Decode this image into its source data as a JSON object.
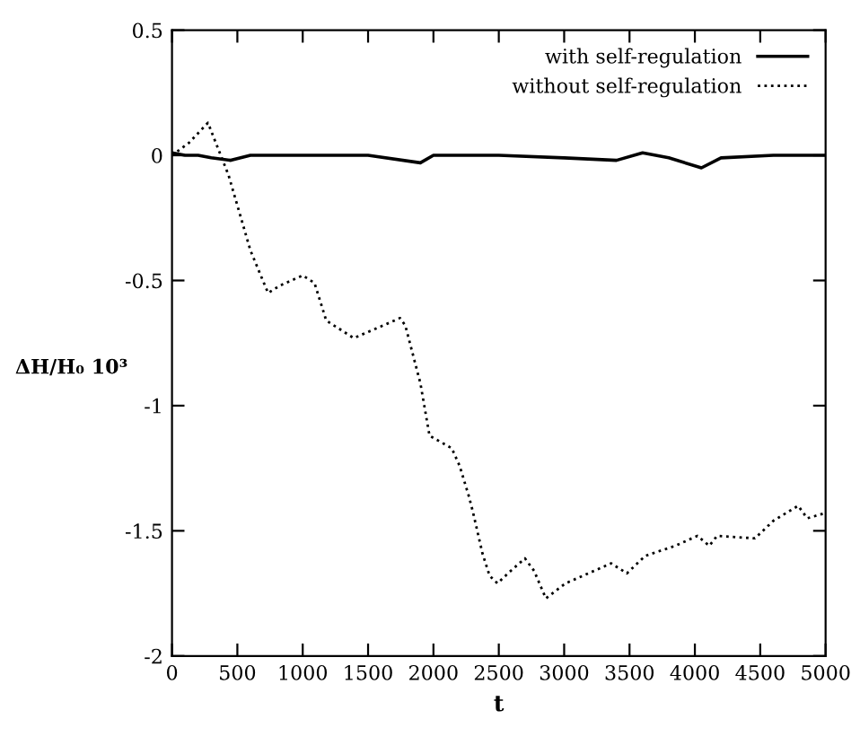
{
  "chart_data": {
    "type": "line",
    "xlabel": "t",
    "ylabel": "ΔH/H₀ 10³",
    "xlim": [
      0,
      5000
    ],
    "ylim": [
      -2,
      0.5
    ],
    "xticks": [
      0,
      500,
      1000,
      1500,
      2000,
      2500,
      3000,
      3500,
      4000,
      4500,
      5000
    ],
    "yticks": [
      -2,
      -1.5,
      -1,
      -0.5,
      0,
      0.5
    ],
    "grid": false,
    "legend": "top right",
    "marker": "none",
    "series": [
      {
        "name": "with self-regulation",
        "color": "#000000",
        "line_style": "solid",
        "x": [
          0,
          100,
          200,
          300,
          450,
          600,
          1000,
          1500,
          1900,
          2000,
          2500,
          3000,
          3400,
          3600,
          3800,
          4050,
          4200,
          4600,
          5000
        ],
        "values": [
          0.01,
          0.0,
          0.0,
          -0.01,
          -0.02,
          0.0,
          0.0,
          0.0,
          -0.03,
          0.0,
          0.0,
          -0.01,
          -0.02,
          0.01,
          -0.01,
          -0.05,
          -0.01,
          0.0,
          0.0
        ]
      },
      {
        "name": "without self-regulation",
        "color": "#000000",
        "line_style": "dotted",
        "x": [
          0,
          130,
          275,
          433,
          600,
          695,
          735,
          827,
          1000,
          1090,
          1180,
          1390,
          1570,
          1745,
          1785,
          1900,
          1970,
          2140,
          2200,
          2270,
          2300,
          2375,
          2430,
          2490,
          2570,
          2700,
          2770,
          2860,
          3010,
          3360,
          3480,
          3620,
          3850,
          4020,
          4110,
          4170,
          4460,
          4600,
          4790,
          4860,
          4990
        ],
        "values": [
          0,
          0.05,
          0.13,
          -0.08,
          -0.38,
          -0.5,
          -0.55,
          -0.52,
          -0.48,
          -0.51,
          -0.66,
          -0.73,
          -0.69,
          -0.65,
          -0.68,
          -0.91,
          -1.12,
          -1.17,
          -1.24,
          -1.36,
          -1.42,
          -1.59,
          -1.68,
          -1.71,
          -1.67,
          -1.61,
          -1.66,
          -1.77,
          -1.71,
          -1.63,
          -1.67,
          -1.6,
          -1.56,
          -1.52,
          -1.56,
          -1.52,
          -1.53,
          -1.46,
          -1.4,
          -1.45,
          -1.43
        ]
      }
    ]
  }
}
